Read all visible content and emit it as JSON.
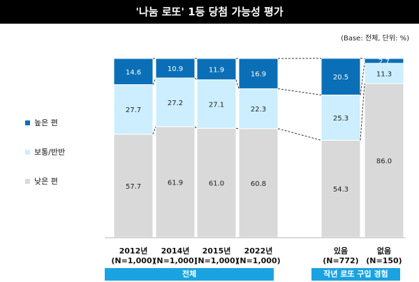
{
  "title": "'나눔 로또' 1등 당첨 가능성 평가",
  "note": "(Base: 전체, 단위: %)",
  "colors": {
    "high": "#0a6fb6",
    "mid": "#cceeff",
    "low": "#d9d9d9",
    "group": "#1aa3e0"
  },
  "legend": [
    {
      "key": "high",
      "label": "높은 편"
    },
    {
      "key": "mid",
      "label": "보통/반반"
    },
    {
      "key": "low",
      "label": "낮은 편"
    }
  ],
  "chart_data": {
    "type": "bar",
    "stacked": true,
    "ylim": [
      0,
      100
    ],
    "categories": [
      {
        "line1": "2012년",
        "line2": "(N=1,000)"
      },
      {
        "line1": "2014년",
        "line2": "(N=1,000)"
      },
      {
        "line1": "2015년",
        "line2": "(N=1,000)"
      },
      {
        "line1": "2022년",
        "line2": "(N=1,000)"
      },
      {
        "line1": "있음",
        "line2": "(N=772)"
      },
      {
        "line1": "없음",
        "line2": "(N=150)"
      }
    ],
    "series": [
      {
        "name": "낮은 편",
        "key": "low",
        "values": [
          57.7,
          61.9,
          61.0,
          60.8,
          54.3,
          86.0
        ]
      },
      {
        "name": "보통/반반",
        "key": "mid",
        "values": [
          27.7,
          27.2,
          27.1,
          22.3,
          25.3,
          11.3
        ]
      },
      {
        "name": "높은 편",
        "key": "high",
        "values": [
          14.6,
          10.9,
          11.9,
          16.9,
          20.5,
          2.7
        ]
      }
    ],
    "labels": [
      [
        "57.7",
        "61.9",
        "61.0",
        "60.8",
        "54.3",
        "86.0"
      ],
      [
        "27.7",
        "27.2",
        "27.1",
        "22.3",
        "25.3",
        "11.3"
      ],
      [
        "14.6",
        "10.9",
        "11.9",
        "16.9",
        "20.5",
        "2.7"
      ]
    ],
    "groups": [
      {
        "label": "전체",
        "members": [
          0,
          1,
          2,
          3
        ]
      },
      {
        "label": "작년 로또 구입 경험",
        "members": [
          4,
          5
        ]
      }
    ]
  }
}
